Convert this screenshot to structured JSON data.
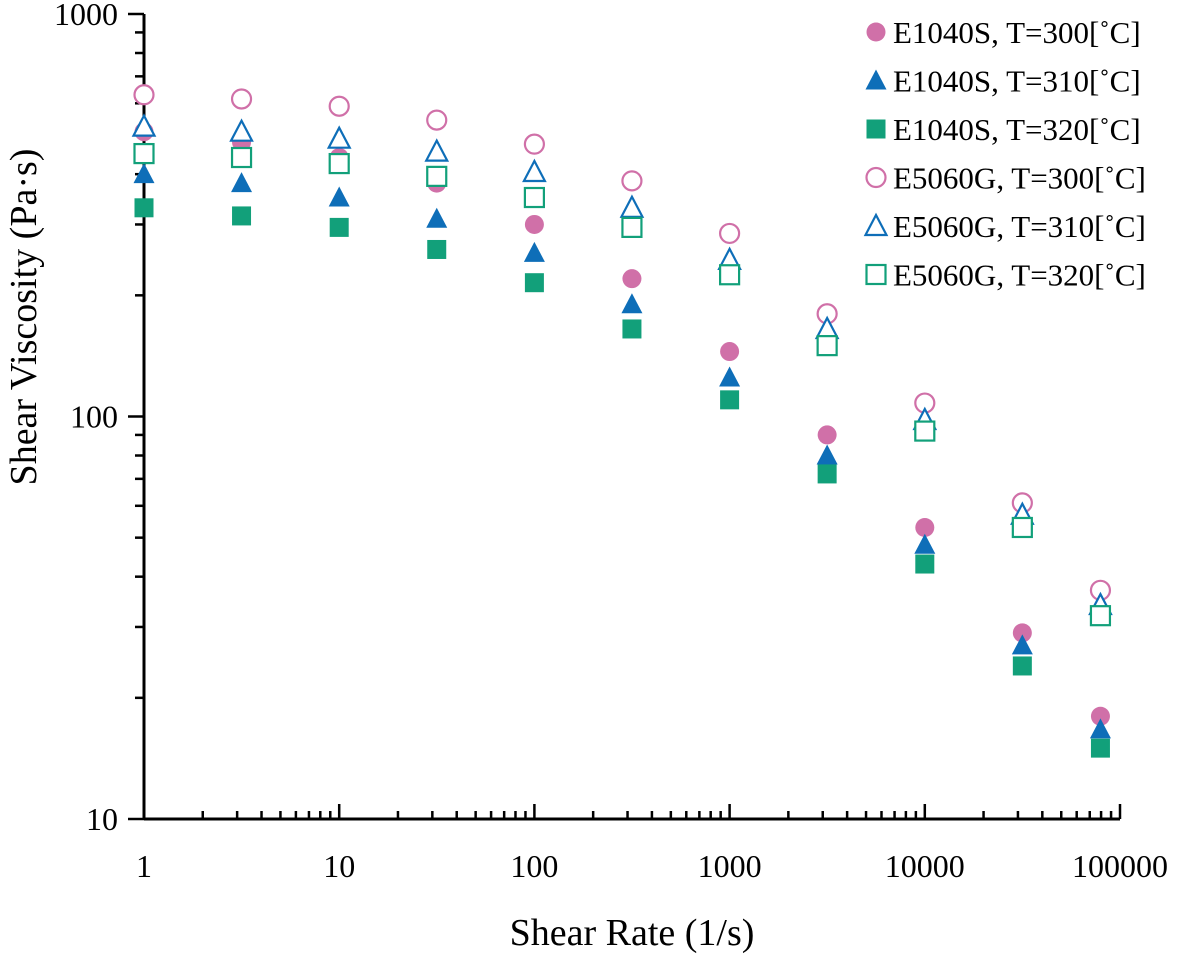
{
  "chart_data": {
    "type": "scatter",
    "title": "",
    "xlabel": "Shear Rate (1/s)",
    "ylabel": "Shear Viscosity (Pa·s)",
    "x_scale": "log",
    "y_scale": "log",
    "xlim": [
      1,
      100000
    ],
    "ylim": [
      10,
      1000
    ],
    "x_ticks": [
      "1",
      "10",
      "100",
      "1000",
      "10000",
      "100000"
    ],
    "y_ticks": [
      "10",
      "100",
      "1000"
    ],
    "grid": false,
    "legend_position": "top-right",
    "colors": {
      "pink": "#d070a8",
      "blue": "#0e6eb8",
      "green": "#12a07a"
    },
    "series": [
      {
        "name": "E1040S, T=300[˚C]",
        "marker": "circle",
        "filled": true,
        "color": "#d070a8",
        "x": [
          1,
          3.16,
          10,
          31.6,
          100,
          316,
          1000,
          3160,
          10000,
          31600,
          79400
        ],
        "y": [
          510,
          480,
          440,
          380,
          300,
          220,
          145,
          90,
          53,
          29,
          18
        ]
      },
      {
        "name": "E1040S, T=310[˚C]",
        "marker": "triangle",
        "filled": true,
        "color": "#0e6eb8",
        "x": [
          1,
          3.16,
          10,
          31.6,
          100,
          316,
          1000,
          3160,
          10000,
          31600,
          79400
        ],
        "y": [
          400,
          380,
          350,
          310,
          255,
          190,
          125,
          80,
          48,
          27,
          16.7
        ]
      },
      {
        "name": "E1040S, T=320[˚C]",
        "marker": "square",
        "filled": true,
        "color": "#12a07a",
        "x": [
          1,
          3.16,
          10,
          31.6,
          100,
          316,
          1000,
          3160,
          10000,
          31600,
          79400
        ],
        "y": [
          330,
          315,
          295,
          260,
          215,
          165,
          110,
          72,
          43,
          24,
          15
        ]
      },
      {
        "name": "E5060G, T=300[˚C]",
        "marker": "circle",
        "filled": false,
        "color": "#d070a8",
        "x": [
          1,
          3.16,
          10,
          31.6,
          100,
          316,
          1000,
          3160,
          10000,
          31600,
          79400
        ],
        "y": [
          630,
          615,
          590,
          545,
          475,
          385,
          285,
          180,
          108,
          61,
          37
        ]
      },
      {
        "name": "E5060G, T=310[˚C]",
        "marker": "triangle",
        "filled": false,
        "color": "#0e6eb8",
        "x": [
          1,
          3.16,
          10,
          31.6,
          100,
          316,
          1000,
          3160,
          10000,
          31600,
          79400
        ],
        "y": [
          525,
          510,
          490,
          455,
          405,
          330,
          245,
          165,
          98,
          57,
          34
        ]
      },
      {
        "name": "E5060G, T=320[˚C]",
        "marker": "square",
        "filled": false,
        "color": "#12a07a",
        "x": [
          1,
          3.16,
          10,
          31.6,
          100,
          316,
          1000,
          3160,
          10000,
          31600,
          79400
        ],
        "y": [
          450,
          440,
          425,
          395,
          350,
          295,
          225,
          150,
          92,
          53,
          32
        ]
      }
    ]
  }
}
